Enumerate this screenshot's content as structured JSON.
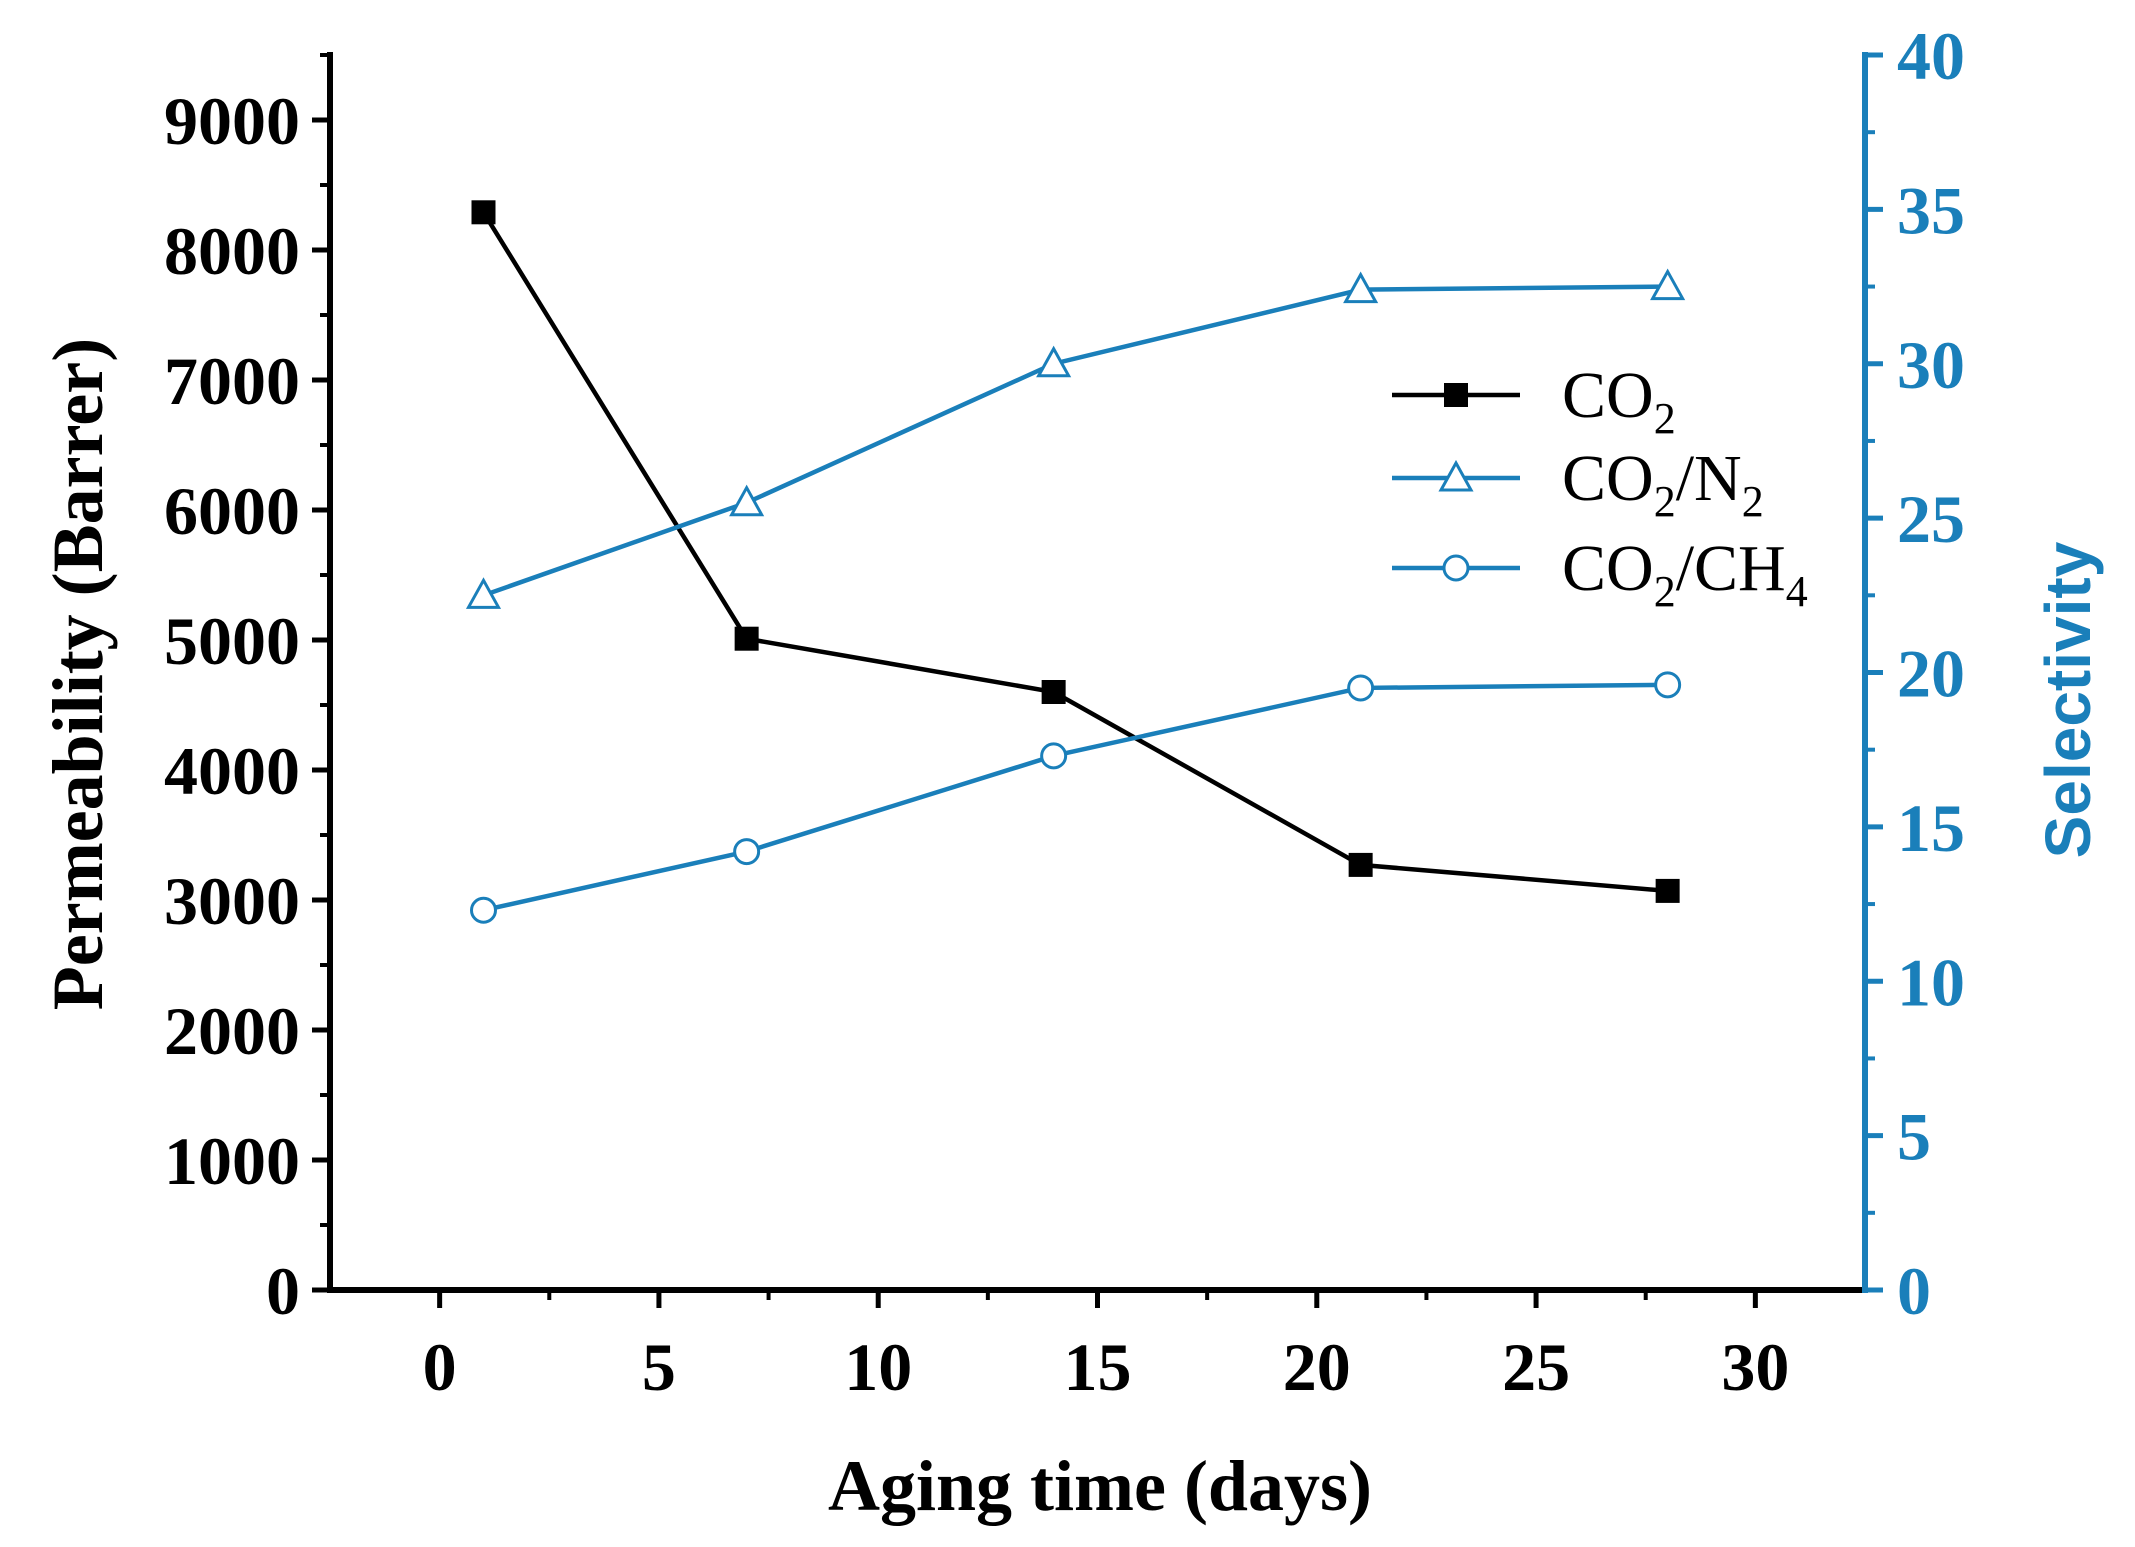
{
  "chart_data": {
    "type": "line",
    "xlabel": "Aging time (days)",
    "ylabel_left": "Permeability (Barrer)",
    "ylabel_right": "Selectivity",
    "xlim": [
      -2.5,
      32.5
    ],
    "ylim_left": [
      0,
      9500
    ],
    "ylim_right": [
      0,
      40
    ],
    "x_ticks": [
      0,
      5,
      10,
      15,
      20,
      25,
      30
    ],
    "y_left_ticks": [
      0,
      1000,
      2000,
      3000,
      4000,
      5000,
      6000,
      7000,
      8000,
      9000
    ],
    "y_right_ticks": [
      0,
      5,
      10,
      15,
      20,
      25,
      30,
      35,
      40
    ],
    "grid": false,
    "legend_position": "upper-right",
    "series": [
      {
        "name": "CO2",
        "label_main": "CO",
        "label_sub": "2",
        "label_rest": "",
        "label_rest_sub": "",
        "axis": "left",
        "marker": "filled-square",
        "color": "#000000",
        "x": [
          1,
          7,
          14,
          21,
          28
        ],
        "values": [
          8290,
          5010,
          4600,
          3270,
          3070
        ]
      },
      {
        "name": "CO2/N2",
        "label_main": "CO",
        "label_sub": "2",
        "label_rest": "/N",
        "label_rest_sub": "2",
        "axis": "right",
        "marker": "open-triangle",
        "color": "#1a7fba",
        "x": [
          1,
          7,
          14,
          21,
          28
        ],
        "values": [
          22.5,
          25.5,
          30.0,
          32.4,
          32.5
        ]
      },
      {
        "name": "CO2/CH4",
        "label_main": "CO",
        "label_sub": "2",
        "label_rest": "/CH",
        "label_rest_sub": "4",
        "axis": "right",
        "marker": "open-circle",
        "color": "#1a7fba",
        "x": [
          1,
          7,
          14,
          21,
          28
        ],
        "values": [
          12.3,
          14.2,
          17.3,
          19.5,
          19.6
        ]
      }
    ]
  }
}
